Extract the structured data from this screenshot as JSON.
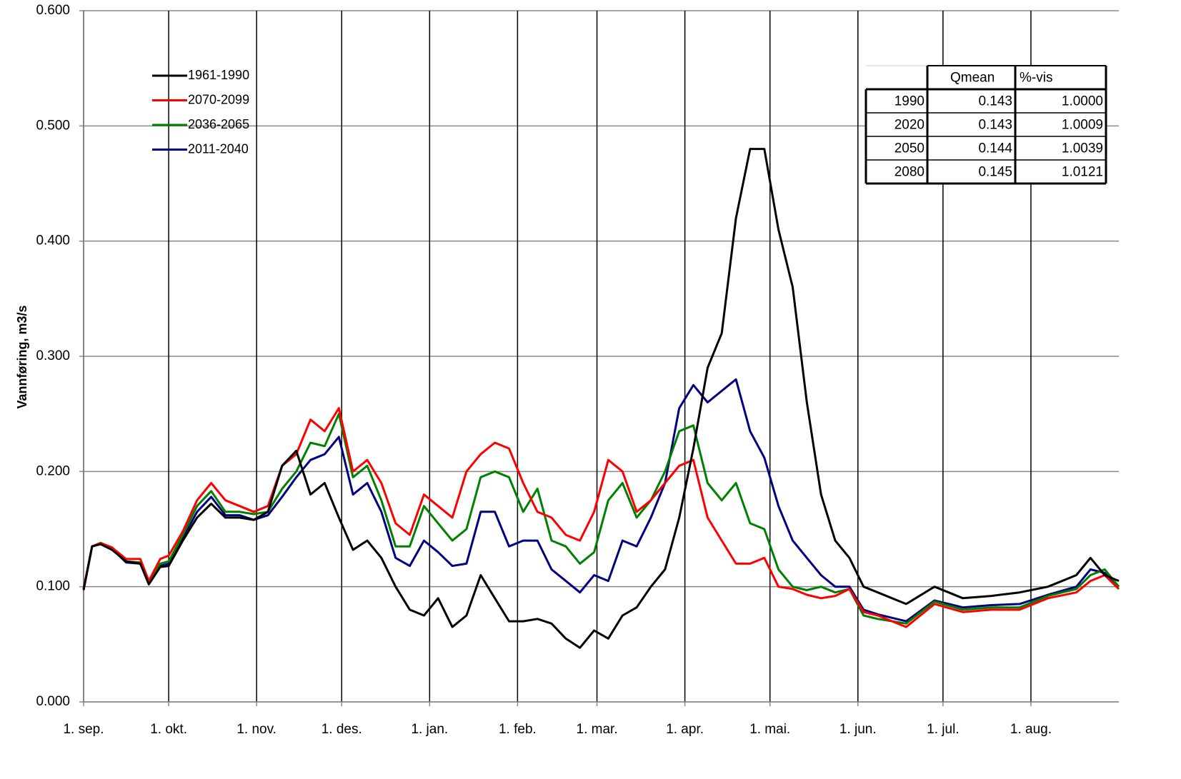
{
  "chart_data": {
    "type": "line",
    "y_label": "Vannføring, m3/s",
    "x": [
      0,
      3,
      6,
      10,
      15,
      20,
      23,
      27,
      30,
      35,
      40,
      45,
      50,
      55,
      60,
      65,
      70,
      75,
      80,
      85,
      90,
      95,
      100,
      105,
      110,
      115,
      120,
      125,
      130,
      135,
      140,
      145,
      150,
      155,
      160,
      165,
      170,
      175,
      180,
      185,
      190,
      195,
      200,
      205,
      210,
      215,
      220,
      225,
      230,
      235,
      240,
      245,
      250,
      255,
      260,
      265,
      270,
      275,
      280,
      290,
      300,
      310,
      320,
      330,
      340,
      350,
      355,
      360,
      365
    ],
    "xlim": [
      0,
      365
    ],
    "xticks": [
      {
        "value": 0,
        "label": "1. sep."
      },
      {
        "value": 30,
        "label": "1. okt."
      },
      {
        "value": 61,
        "label": "1. nov."
      },
      {
        "value": 91,
        "label": "1. des."
      },
      {
        "value": 122,
        "label": "1. jan."
      },
      {
        "value": 153,
        "label": "1. feb."
      },
      {
        "value": 181,
        "label": "1. mar."
      },
      {
        "value": 212,
        "label": "1. apr."
      },
      {
        "value": 242,
        "label": "1. mai."
      },
      {
        "value": 273,
        "label": "1. jun."
      },
      {
        "value": 303,
        "label": "1. jul."
      },
      {
        "value": 334,
        "label": "1. aug."
      }
    ],
    "ylim": [
      0,
      0.6
    ],
    "yticks": [
      {
        "value": 0,
        "label": "0.000"
      },
      {
        "value": 0.1,
        "label": "0.100"
      },
      {
        "value": 0.2,
        "label": "0.200"
      },
      {
        "value": 0.3,
        "label": "0.300"
      },
      {
        "value": 0.4,
        "label": "0.400"
      },
      {
        "value": 0.5,
        "label": "0.500"
      },
      {
        "value": 0.6,
        "label": "0.600"
      }
    ],
    "grid": true,
    "legend": "upper left",
    "series": [
      {
        "name": "1961-1990",
        "color": "#000000",
        "values": [
          0.097,
          0.135,
          0.137,
          0.132,
          0.122,
          0.12,
          0.102,
          0.117,
          0.118,
          0.14,
          0.16,
          0.172,
          0.16,
          0.16,
          0.158,
          0.165,
          0.205,
          0.218,
          0.18,
          0.19,
          0.16,
          0.132,
          0.14,
          0.125,
          0.1,
          0.08,
          0.075,
          0.09,
          0.065,
          0.075,
          0.11,
          0.09,
          0.07,
          0.07,
          0.072,
          0.068,
          0.055,
          0.047,
          0.062,
          0.055,
          0.075,
          0.082,
          0.1,
          0.115,
          0.16,
          0.22,
          0.29,
          0.32,
          0.42,
          0.48,
          0.48,
          0.41,
          0.36,
          0.26,
          0.18,
          0.14,
          0.125,
          0.1,
          0.095,
          0.085,
          0.1,
          0.09,
          0.092,
          0.095,
          0.1,
          0.11,
          0.125,
          0.11,
          0.105
        ]
      },
      {
        "name": "2070-2099",
        "color": "#ff0000",
        "values": [
          0.098,
          0.135,
          0.138,
          0.134,
          0.124,
          0.124,
          0.105,
          0.124,
          0.127,
          0.148,
          0.175,
          0.19,
          0.175,
          0.17,
          0.165,
          0.17,
          0.205,
          0.215,
          0.245,
          0.235,
          0.255,
          0.2,
          0.21,
          0.19,
          0.155,
          0.145,
          0.18,
          0.17,
          0.16,
          0.2,
          0.215,
          0.225,
          0.22,
          0.19,
          0.165,
          0.16,
          0.145,
          0.14,
          0.165,
          0.21,
          0.2,
          0.165,
          0.175,
          0.19,
          0.205,
          0.21,
          0.16,
          0.14,
          0.12,
          0.12,
          0.125,
          0.1,
          0.098,
          0.093,
          0.09,
          0.092,
          0.098,
          0.078,
          0.075,
          0.065,
          0.085,
          0.078,
          0.08,
          0.08,
          0.09,
          0.095,
          0.105,
          0.11,
          0.098
        ]
      },
      {
        "name": "2036-2065",
        "color": "#008000",
        "values": [
          0.098,
          0.135,
          0.138,
          0.134,
          0.122,
          0.121,
          0.104,
          0.12,
          0.122,
          0.145,
          0.17,
          0.183,
          0.165,
          0.165,
          0.163,
          0.165,
          0.185,
          0.2,
          0.225,
          0.222,
          0.25,
          0.195,
          0.205,
          0.175,
          0.135,
          0.135,
          0.17,
          0.155,
          0.14,
          0.15,
          0.195,
          0.2,
          0.195,
          0.165,
          0.185,
          0.14,
          0.135,
          0.12,
          0.13,
          0.175,
          0.19,
          0.16,
          0.175,
          0.2,
          0.235,
          0.24,
          0.19,
          0.175,
          0.19,
          0.155,
          0.15,
          0.115,
          0.1,
          0.097,
          0.1,
          0.095,
          0.098,
          0.075,
          0.072,
          0.068,
          0.087,
          0.08,
          0.082,
          0.082,
          0.092,
          0.098,
          0.11,
          0.115,
          0.1
        ]
      },
      {
        "name": "2011-2040",
        "color": "#000080",
        "values": [
          0.098,
          0.135,
          0.137,
          0.133,
          0.121,
          0.12,
          0.103,
          0.118,
          0.12,
          0.142,
          0.165,
          0.178,
          0.162,
          0.162,
          0.158,
          0.162,
          0.178,
          0.195,
          0.21,
          0.215,
          0.23,
          0.18,
          0.19,
          0.165,
          0.125,
          0.118,
          0.14,
          0.13,
          0.118,
          0.12,
          0.165,
          0.165,
          0.135,
          0.14,
          0.14,
          0.115,
          0.105,
          0.095,
          0.11,
          0.105,
          0.14,
          0.135,
          0.16,
          0.19,
          0.255,
          0.275,
          0.26,
          0.27,
          0.28,
          0.235,
          0.212,
          0.17,
          0.14,
          0.125,
          0.11,
          0.1,
          0.1,
          0.08,
          0.076,
          0.07,
          0.088,
          0.082,
          0.084,
          0.085,
          0.093,
          0.1,
          0.115,
          0.112,
          0.1
        ]
      }
    ]
  },
  "table": {
    "columns": [
      "Qmean",
      "%-vis"
    ],
    "rows": [
      [
        1990,
        0.143,
        "1.0000"
      ],
      [
        2020,
        0.143,
        "1.0009"
      ],
      [
        2050,
        0.144,
        "1.0039"
      ],
      [
        2080,
        0.145,
        "1.0121"
      ]
    ]
  }
}
